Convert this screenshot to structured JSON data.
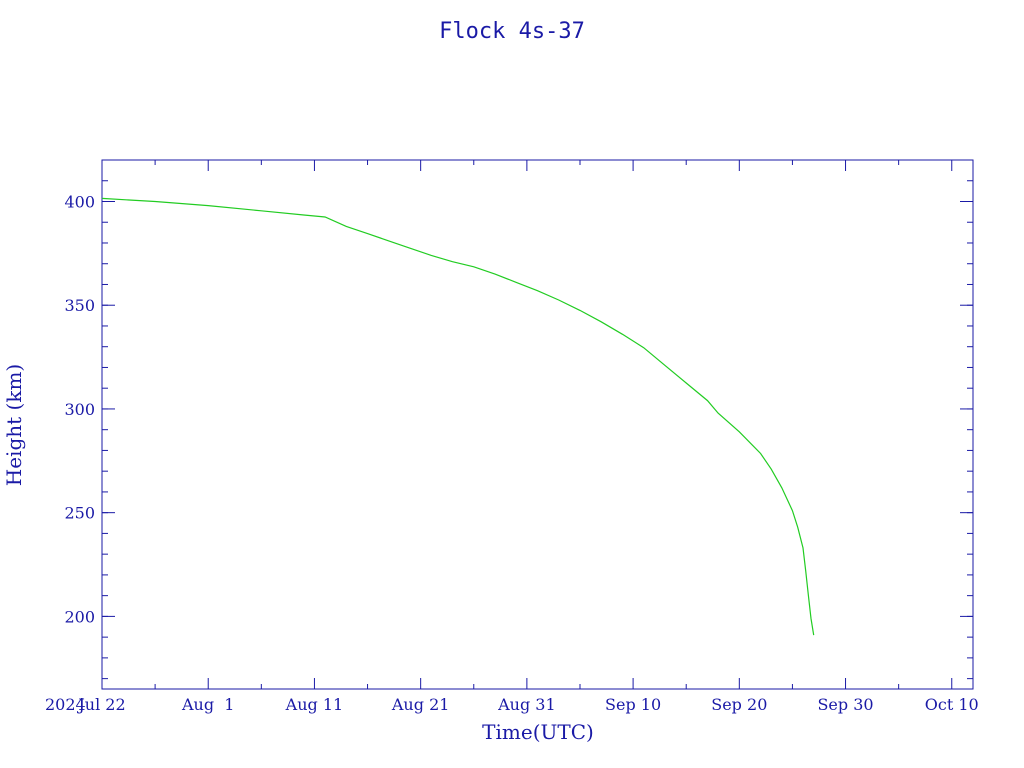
{
  "chart_data": {
    "type": "line",
    "title": "Flock 4s-37",
    "xlabel": "Time(UTC)",
    "ylabel": "Height (km)",
    "year_label": "2024",
    "xlim": [
      "2024-07-22",
      "2024-10-12"
    ],
    "ylim": [
      165,
      420
    ],
    "x_ticks": [
      {
        "date": "2024-07-22",
        "label": "Jul 22"
      },
      {
        "date": "2024-08-01",
        "label": "Aug  1"
      },
      {
        "date": "2024-08-11",
        "label": "Aug 11"
      },
      {
        "date": "2024-08-21",
        "label": "Aug 21"
      },
      {
        "date": "2024-08-31",
        "label": "Aug 31"
      },
      {
        "date": "2024-09-10",
        "label": "Sep 10"
      },
      {
        "date": "2024-09-20",
        "label": "Sep 20"
      },
      {
        "date": "2024-09-30",
        "label": "Sep 30"
      },
      {
        "date": "2024-10-10",
        "label": "Oct 10"
      }
    ],
    "y_ticks": [
      200,
      250,
      300,
      350,
      400
    ],
    "grid": false,
    "series": [
      {
        "color": "#22cc22",
        "x": [
          "2024-07-22",
          "2024-07-27",
          "2024-08-01",
          "2024-08-06",
          "2024-08-10",
          "2024-08-12",
          "2024-08-14",
          "2024-08-16",
          "2024-08-18",
          "2024-08-20",
          "2024-08-22",
          "2024-08-24",
          "2024-08-26",
          "2024-08-28",
          "2024-08-30",
          "2024-09-01",
          "2024-09-03",
          "2024-09-05",
          "2024-09-07",
          "2024-09-09",
          "2024-09-11",
          "2024-09-13",
          "2024-09-15",
          "2024-09-17",
          "2024-09-18",
          "2024-09-20",
          "2024-09-22",
          "2024-09-23",
          "2024-09-24",
          "2024-09-25",
          "2024-09-25T12:00",
          "2024-09-26",
          "2024-09-26T06:00",
          "2024-09-26T12:00",
          "2024-09-26T18:00",
          "2024-09-27"
        ],
        "y": [
          401.5,
          400,
          398,
          395.5,
          393.5,
          392.5,
          388,
          384.5,
          381,
          377.5,
          374,
          371,
          368.5,
          365,
          361,
          357,
          352.5,
          347.5,
          342,
          336,
          329.5,
          321,
          312.5,
          304,
          298,
          289,
          278.5,
          271,
          262,
          251,
          243,
          233,
          222,
          210,
          199,
          191
        ]
      }
    ]
  }
}
